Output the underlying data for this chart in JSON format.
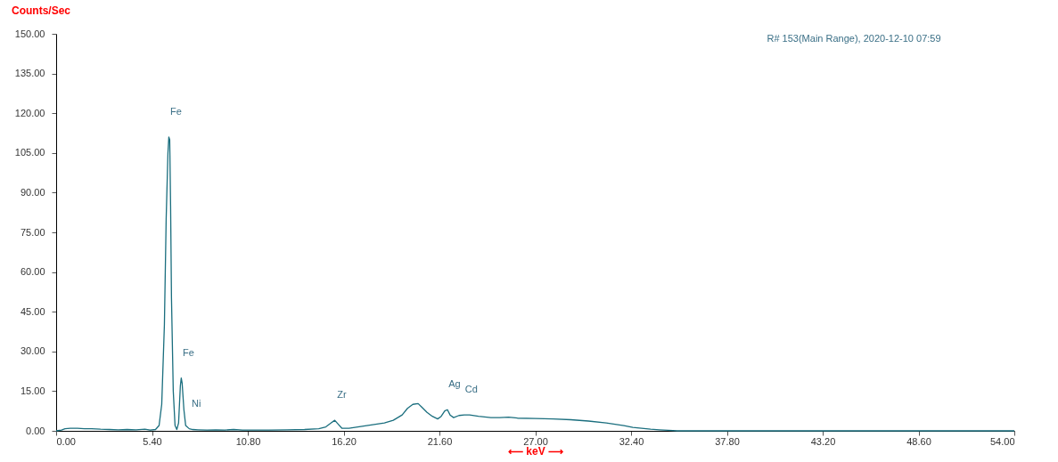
{
  "chart_data": {
    "type": "line",
    "xlabel": "⟵ keV ⟶",
    "ylabel": "Counts/Sec",
    "annotations": [
      "R# 153(Main Range), 2020-12-10 07:59",
      {
        "text": "Fe",
        "x": 6.35,
        "y": 111
      },
      {
        "text": "Fe",
        "x": 7.05,
        "y": 20
      },
      {
        "text": "Ni",
        "x": 7.5,
        "y": 0.8
      },
      {
        "text": "Zr",
        "x": 15.7,
        "y": 4
      },
      {
        "text": "Ag",
        "x": 22.05,
        "y": 8
      },
      {
        "text": "Cd",
        "x": 23,
        "y": 6
      }
    ],
    "series": [
      {
        "color": "#1a6e7e",
        "x": [
          0,
          0.3,
          0.5,
          0.8,
          1.2,
          1.6,
          2,
          2.5,
          3,
          3.5,
          4,
          4.5,
          5,
          5.3,
          5.6,
          5.8,
          5.95,
          6.1,
          6.2,
          6.3,
          6.35,
          6.4,
          6.45,
          6.5,
          6.6,
          6.7,
          6.8,
          6.9,
          6.95,
          7.0,
          7.05,
          7.1,
          7.2,
          7.3,
          7.5,
          7.7,
          8,
          8.5,
          9,
          9.5,
          10,
          10.5,
          11,
          12,
          13,
          14,
          14.8,
          15.2,
          15.5,
          15.7,
          15.9,
          16.1,
          16.5,
          17,
          17.5,
          18,
          18.5,
          19,
          19.5,
          19.8,
          20.1,
          20.4,
          20.6,
          20.9,
          21.2,
          21.5,
          21.7,
          21.9,
          22.05,
          22.2,
          22.4,
          22.7,
          23,
          23.3,
          23.8,
          24.5,
          25,
          25.5,
          26,
          27,
          28,
          29,
          30,
          31,
          32,
          32.5,
          33,
          33.5,
          34,
          34.5,
          35,
          36,
          40,
          45,
          50,
          54
        ],
        "values": [
          0,
          0.3,
          0.8,
          1,
          1,
          0.8,
          0.8,
          0.6,
          0.5,
          0.4,
          0.5,
          0.4,
          0.6,
          0.3,
          0.5,
          2,
          10,
          40,
          80,
          105,
          111,
          110,
          85,
          50,
          15,
          2,
          0.5,
          3,
          10,
          17,
          20,
          18,
          8,
          2,
          0.8,
          0.5,
          0.4,
          0.3,
          0.4,
          0.3,
          0.5,
          0.3,
          0.3,
          0.3,
          0.4,
          0.5,
          0.8,
          1.5,
          3,
          4,
          2.5,
          1,
          1,
          1.5,
          2,
          2.5,
          3,
          4,
          6,
          8.5,
          10,
          10.3,
          9,
          7,
          5.5,
          4.5,
          5.5,
          7.5,
          8,
          6,
          5,
          5.8,
          6,
          6,
          5.5,
          5,
          5,
          5.2,
          4.8,
          4.7,
          4.5,
          4.2,
          3.7,
          3,
          2,
          1.3,
          1,
          0.6,
          0.4,
          0.2,
          0,
          0,
          0,
          0,
          0,
          0
        ]
      }
    ],
    "xlim": [
      0,
      54
    ],
    "ylim": [
      0,
      150
    ],
    "xticks": [
      {
        "value": 0,
        "label": "0.00"
      },
      {
        "value": 5.4,
        "label": "5.40"
      },
      {
        "value": 10.8,
        "label": "10.80"
      },
      {
        "value": 16.2,
        "label": "16.20"
      },
      {
        "value": 21.6,
        "label": "21.60"
      },
      {
        "value": 27,
        "label": "27.00"
      },
      {
        "value": 32.4,
        "label": "32.40"
      },
      {
        "value": 37.8,
        "label": "37.80"
      },
      {
        "value": 43.2,
        "label": "43.20"
      },
      {
        "value": 48.6,
        "label": "48.60"
      },
      {
        "value": 54,
        "label": "54.00"
      }
    ],
    "yticks": [
      {
        "value": 0,
        "label": "0.00"
      },
      {
        "value": 15,
        "label": "15.00"
      },
      {
        "value": 30,
        "label": "30.00"
      },
      {
        "value": 45,
        "label": "45.00"
      },
      {
        "value": 60,
        "label": "60.00"
      },
      {
        "value": 75,
        "label": "75.00"
      },
      {
        "value": 90,
        "label": "90.00"
      },
      {
        "value": 105,
        "label": "105.00"
      },
      {
        "value": 120,
        "label": "120.00"
      },
      {
        "value": 135,
        "label": "135.00"
      },
      {
        "value": 150,
        "label": "150.00"
      }
    ],
    "grid": false,
    "marker": "none",
    "line_style": "solid"
  }
}
